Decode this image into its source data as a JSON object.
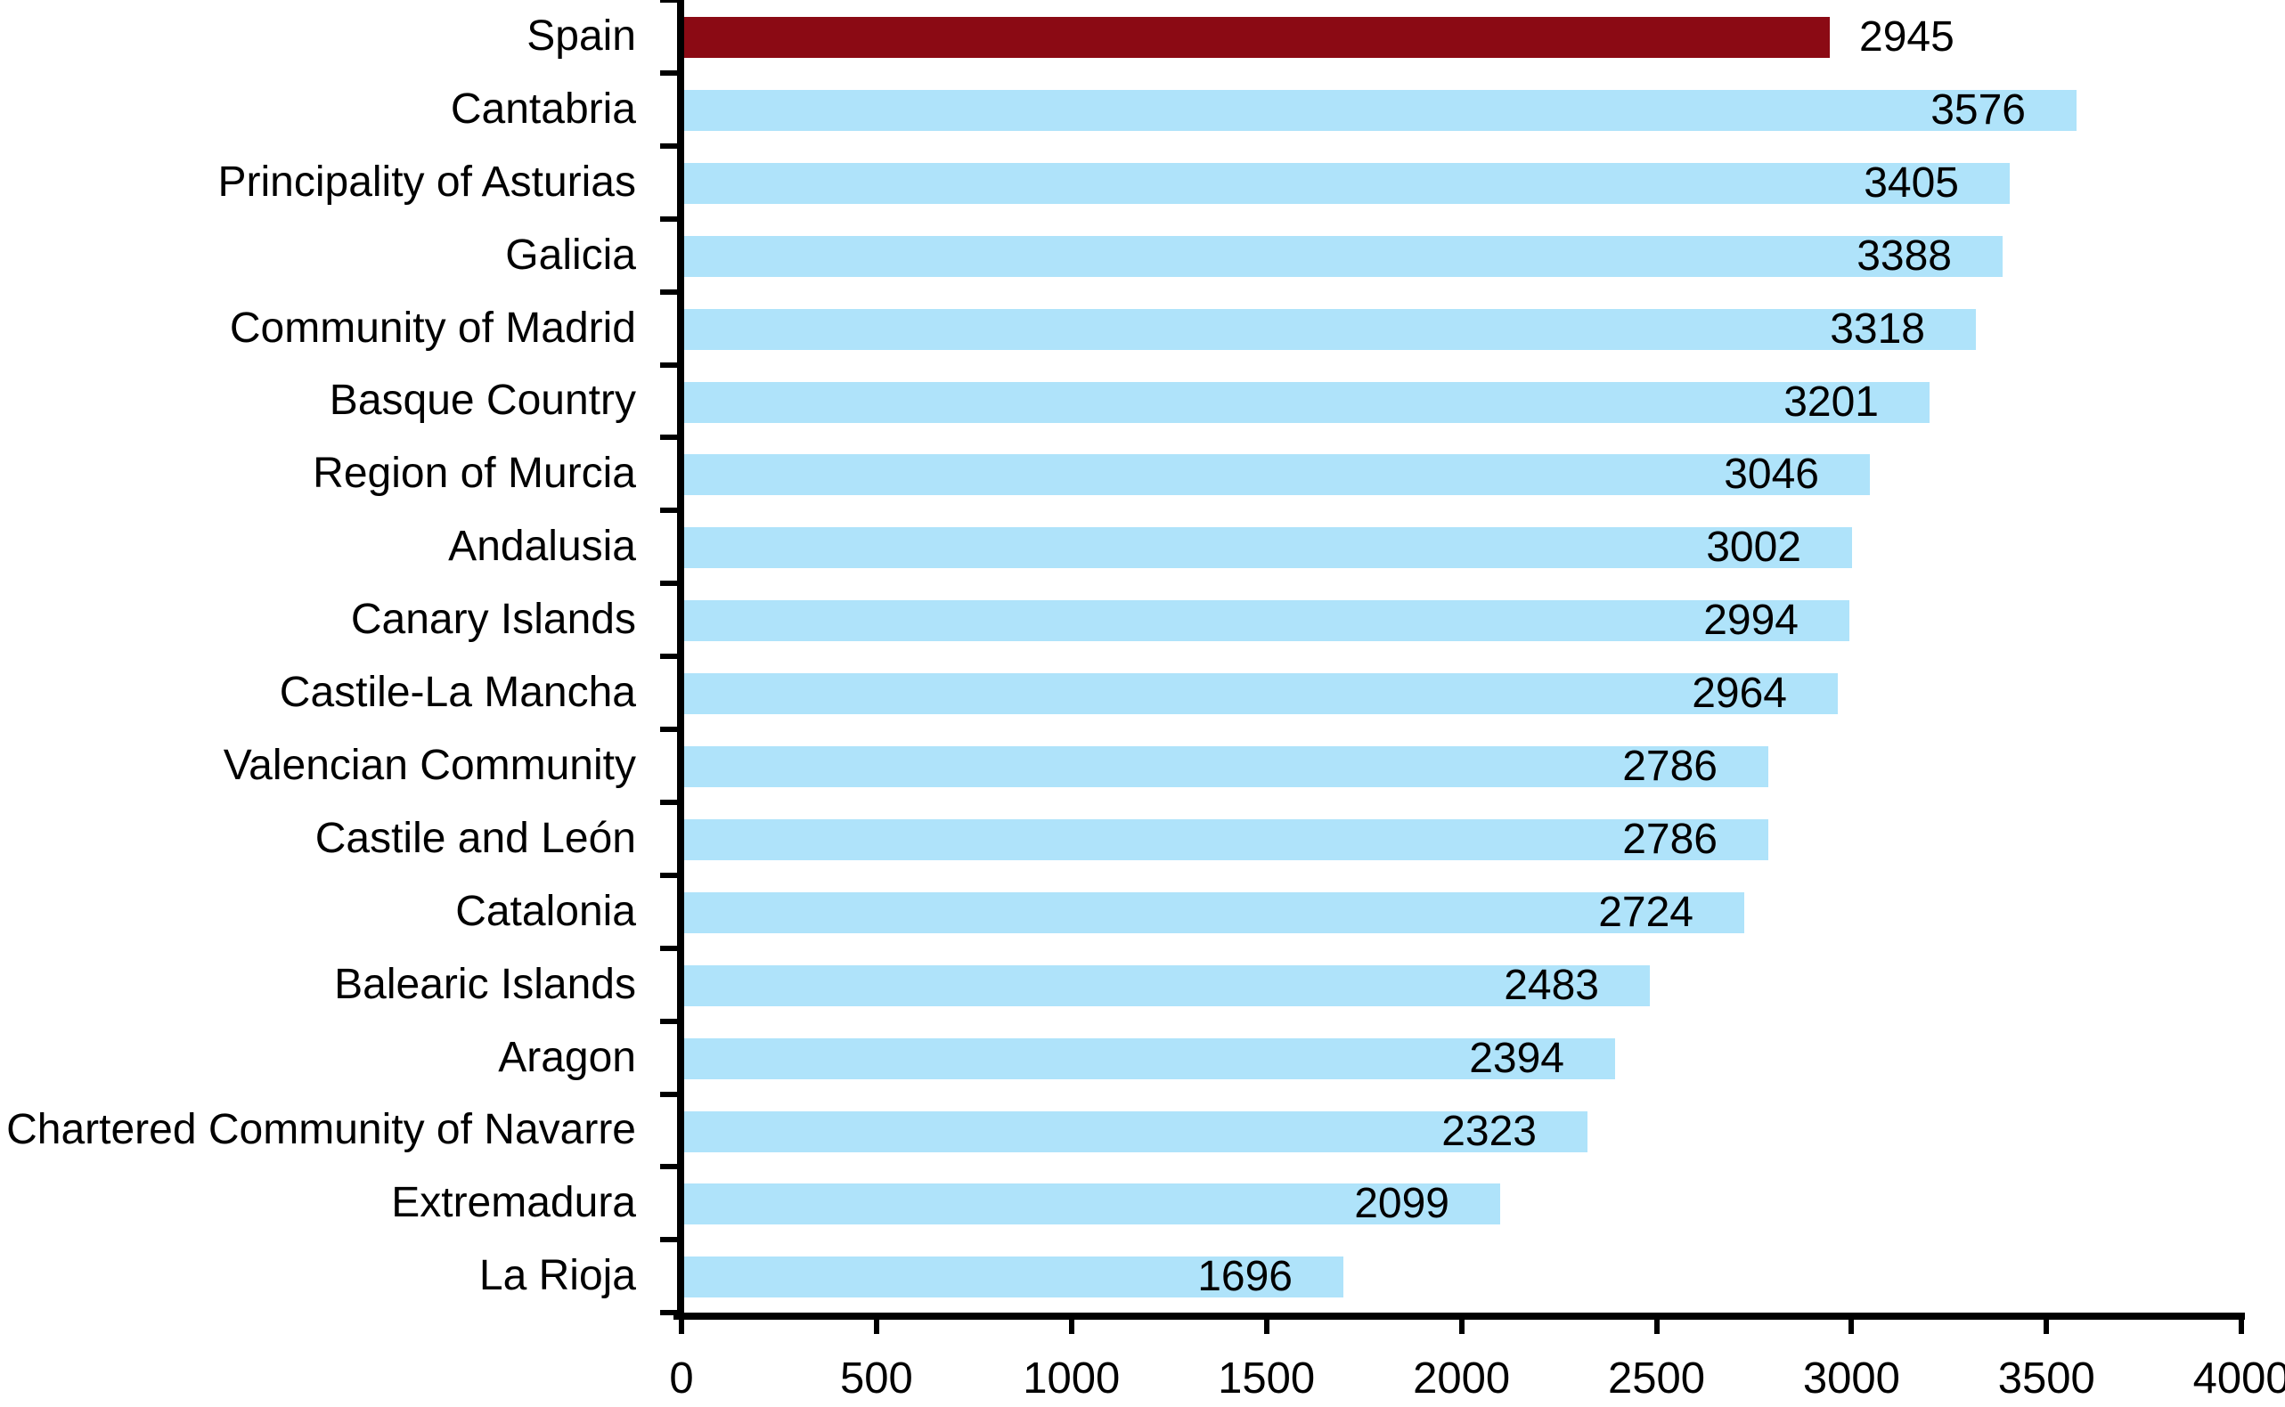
{
  "chart_data": {
    "type": "bar",
    "orientation": "horizontal",
    "title": "",
    "xlabel": "",
    "ylabel": "",
    "categories": [
      "Spain",
      "Cantabria",
      "Principality of Asturias",
      "Galicia",
      "Community of Madrid",
      "Basque Country",
      "Region of Murcia",
      "Andalusia",
      "Canary Islands",
      "Castile-La Mancha",
      "Valencian Community",
      "Castile and León",
      "Catalonia",
      "Balearic Islands",
      "Aragon",
      "Chartered Community of Navarre",
      "Extremadura",
      "La Rioja"
    ],
    "values": [
      2945,
      3576,
      3405,
      3388,
      3318,
      3201,
      3046,
      3002,
      2994,
      2964,
      2786,
      2786,
      2724,
      2483,
      2394,
      2323,
      2099,
      1696
    ],
    "value_labels_shown": true,
    "highlight_category": "Spain",
    "colors": {
      "highlight_bar": "#8B0A14",
      "default_bar": "#AFE3FA",
      "axis": "#000000",
      "text": "#000000"
    },
    "xlim": [
      0,
      4000
    ],
    "x_ticks": [
      0,
      500,
      1000,
      1500,
      2000,
      2500,
      3000,
      3500,
      4000
    ],
    "grid": false,
    "legend": "none"
  }
}
